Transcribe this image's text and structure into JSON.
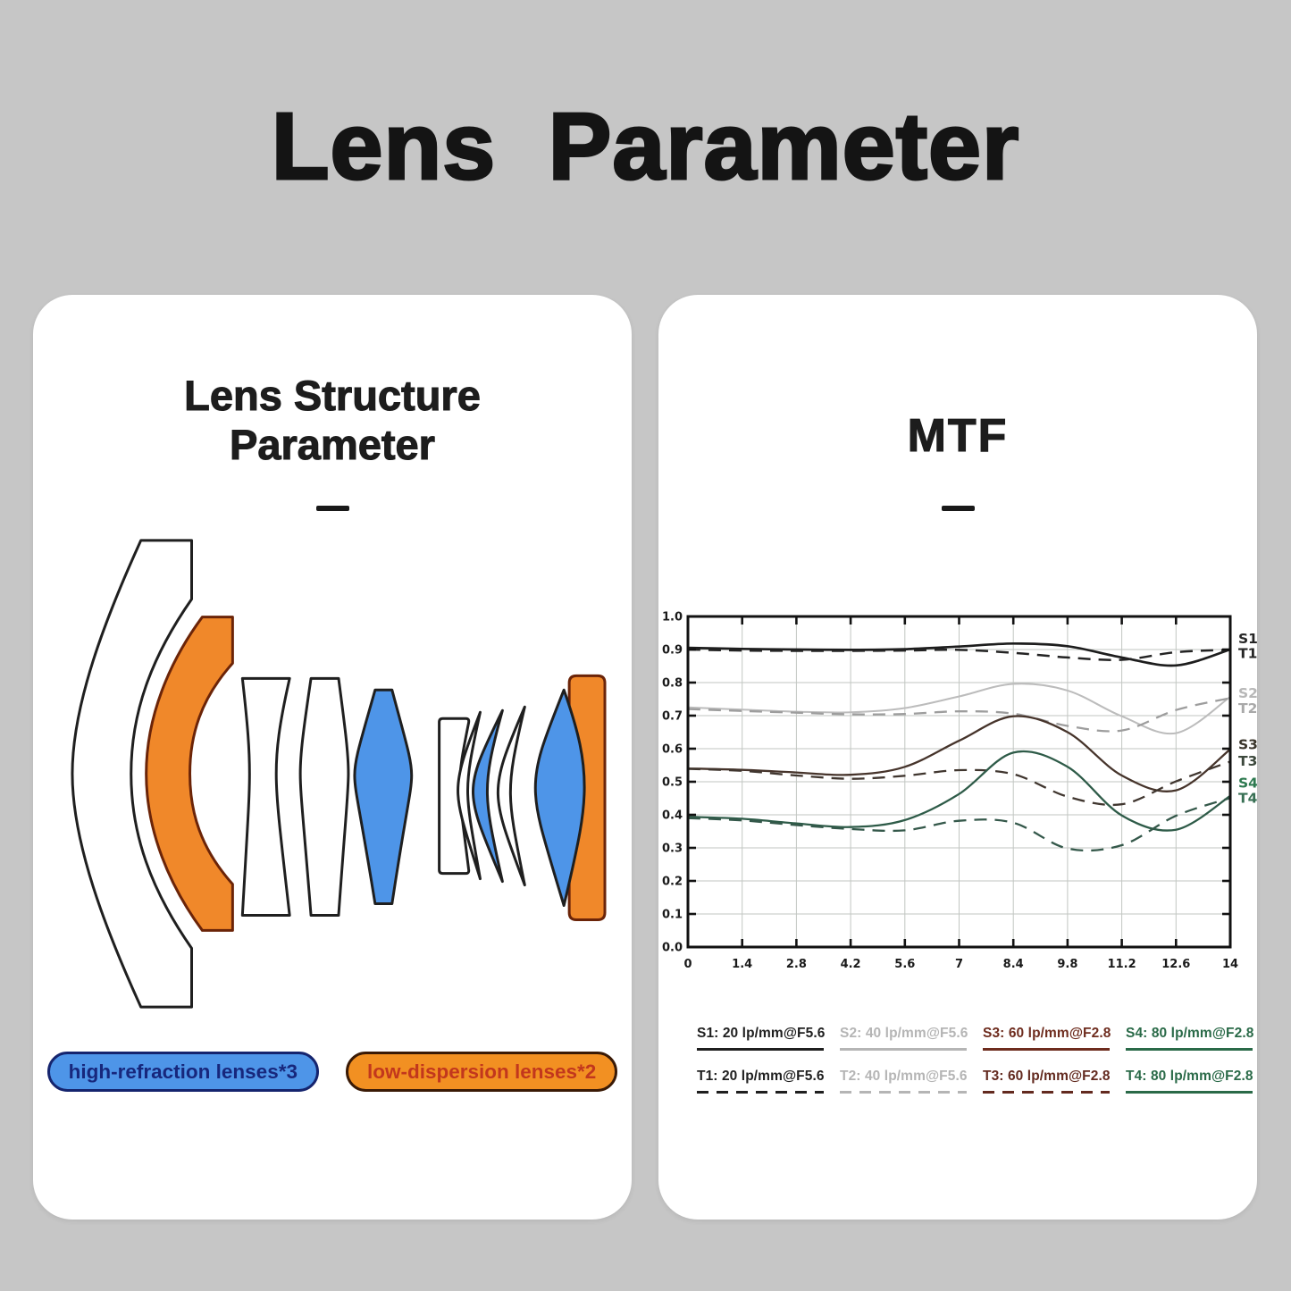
{
  "page": {
    "title": "Lens Parameter",
    "background_color": "#c6c6c6",
    "card_color": "#ffffff"
  },
  "structure_card": {
    "title": "Lens Structure Parameter",
    "divider_glyph": "—",
    "lens_colors": {
      "high_refraction": "#4e95e8",
      "low_dispersion": "#f0882a",
      "plain": "#ffffff",
      "outline": "#1f1f1f",
      "orange_outline": "#6b2408"
    },
    "elements": [
      {
        "index": 1,
        "name": "front-group-shell",
        "material": "standard"
      },
      {
        "index": 2,
        "name": "deep-meniscus",
        "material": "low-dispersion"
      },
      {
        "index": 3,
        "name": "concave-slab",
        "material": "standard"
      },
      {
        "index": 4,
        "name": "thin-biconvex",
        "material": "standard"
      },
      {
        "index": 5,
        "name": "biconvex",
        "material": "high-refraction"
      },
      {
        "index": 6,
        "name": "plano-concave-slab",
        "material": "standard"
      },
      {
        "index": 7,
        "name": "thin-meniscus",
        "material": "standard"
      },
      {
        "index": 8,
        "name": "meniscus",
        "material": "high-refraction"
      },
      {
        "index": 9,
        "name": "thin-meniscus",
        "material": "standard"
      },
      {
        "index": 10,
        "name": "rear-flat-element",
        "material": "low-dispersion"
      },
      {
        "index": 11,
        "name": "rear-biconvex",
        "material": "high-refraction"
      }
    ],
    "badges": [
      {
        "label": "high-refraction lenses*3",
        "fill": "#4e95e8",
        "border": "#15246e",
        "text_color": "#17277c"
      },
      {
        "label": "low-dispersion lenses*2",
        "fill": "#f29022",
        "border": "#3a1a06",
        "text_color": "#c2371d"
      }
    ]
  },
  "mtf_card": {
    "title": "MTF",
    "divider_glyph": "—"
  },
  "chart_data": {
    "type": "line",
    "title": "MTF",
    "xlabel": "",
    "ylabel": "",
    "xlim": [
      0,
      14
    ],
    "ylim": [
      0,
      1
    ],
    "grid": true,
    "grid_color": "#c2c6c2",
    "frame_color": "#121212",
    "legend_position": "bottom",
    "x_ticks": [
      0,
      1.4,
      2.8,
      4.2,
      5.6,
      7,
      8.4,
      9.8,
      11.2,
      12.6,
      14
    ],
    "x_tick_labels": [
      "0",
      "1.4",
      "2.8",
      "4.2",
      "5.6",
      "7",
      "8.4",
      "9.8",
      "11.2",
      "12.6",
      "14"
    ],
    "y_ticks": [
      0,
      0.1,
      0.2,
      0.3,
      0.4,
      0.5,
      0.6,
      0.7,
      0.8,
      0.9,
      1.0
    ],
    "y_tick_labels": [
      "0.0",
      "0.1",
      "0.2",
      "0.3",
      "0.4",
      "0.5",
      "0.6",
      "0.7",
      "0.8",
      "0.9",
      "1.0"
    ],
    "x": [
      0,
      1.4,
      2.8,
      4.2,
      5.6,
      7,
      8.4,
      9.8,
      11.2,
      12.6,
      14
    ],
    "series": [
      {
        "name": "S1",
        "legend": "S1: 20 lp/mm@F5.6",
        "dash": false,
        "legend_dash": false,
        "color": "#1d1d1d",
        "width": 2.7,
        "label_color": "#262626",
        "legend_color": "#1f1f1f",
        "label_y": 0.932,
        "values": [
          0.905,
          0.902,
          0.9,
          0.899,
          0.901,
          0.909,
          0.918,
          0.91,
          0.876,
          0.852,
          0.9
        ]
      },
      {
        "name": "T1",
        "legend": "T1: 20 lp/mm@F5.6",
        "dash": true,
        "legend_dash": true,
        "color": "#232323",
        "width": 2.5,
        "label_color": "#262626",
        "legend_color": "#1f1f1f",
        "label_y": 0.888,
        "values": [
          0.9,
          0.897,
          0.896,
          0.896,
          0.897,
          0.899,
          0.89,
          0.876,
          0.869,
          0.892,
          0.899
        ]
      },
      {
        "name": "S2",
        "legend": "S2: 40 lp/mm@F5.6",
        "dash": false,
        "legend_dash": false,
        "color": "#bcbcbc",
        "width": 2.0,
        "label_color": "#b7b7b7",
        "legend_color": "#b5b5b5",
        "label_y": 0.768,
        "values": [
          0.725,
          0.718,
          0.712,
          0.71,
          0.723,
          0.758,
          0.796,
          0.776,
          0.698,
          0.647,
          0.757
        ]
      },
      {
        "name": "T2",
        "legend": "T2: 40 lp/mm@F5.6",
        "dash": true,
        "legend_dash": true,
        "color": "#9d9d9d",
        "width": 2.3,
        "label_color": "#a9a9a9",
        "legend_color": "#b5b5b5",
        "label_y": 0.722,
        "values": [
          0.72,
          0.714,
          0.709,
          0.704,
          0.705,
          0.713,
          0.706,
          0.669,
          0.655,
          0.717,
          0.753
        ]
      },
      {
        "name": "S3",
        "legend": "S3: 60 lp/mm@F2.8",
        "dash": false,
        "legend_dash": false,
        "color": "#46342b",
        "width": 2.3,
        "label_color": "#3a352b",
        "legend_color": "#6e2c1e",
        "label_y": 0.612,
        "values": [
          0.54,
          0.536,
          0.528,
          0.521,
          0.545,
          0.624,
          0.698,
          0.65,
          0.519,
          0.474,
          0.598
        ]
      },
      {
        "name": "T3",
        "legend": "T3: 60 lp/mm@F2.8",
        "dash": true,
        "legend_dash": true,
        "color": "#40362f",
        "width": 2.3,
        "label_color": "#3c483c",
        "legend_color": "#632a1f",
        "label_y": 0.562,
        "values": [
          0.539,
          0.533,
          0.519,
          0.509,
          0.518,
          0.535,
          0.523,
          0.455,
          0.432,
          0.501,
          0.561
        ]
      },
      {
        "name": "S4",
        "legend": "S4: 80 lp/mm@F2.8",
        "dash": false,
        "legend_dash": false,
        "color": "#2e5b48",
        "width": 2.3,
        "label_color": "#2e7a50",
        "legend_color": "#2a6a48",
        "label_y": 0.496,
        "values": [
          0.394,
          0.388,
          0.374,
          0.363,
          0.384,
          0.463,
          0.588,
          0.545,
          0.398,
          0.355,
          0.457
        ]
      },
      {
        "name": "T4",
        "legend": "T4: 80 lp/mm@F2.8",
        "dash": true,
        "legend_dash": false,
        "color": "#34584a",
        "width": 2.3,
        "label_color": "#387054",
        "legend_color": "#2a6a48",
        "label_y": 0.45,
        "values": [
          0.39,
          0.383,
          0.369,
          0.357,
          0.353,
          0.382,
          0.376,
          0.298,
          0.308,
          0.397,
          0.451
        ]
      }
    ]
  }
}
